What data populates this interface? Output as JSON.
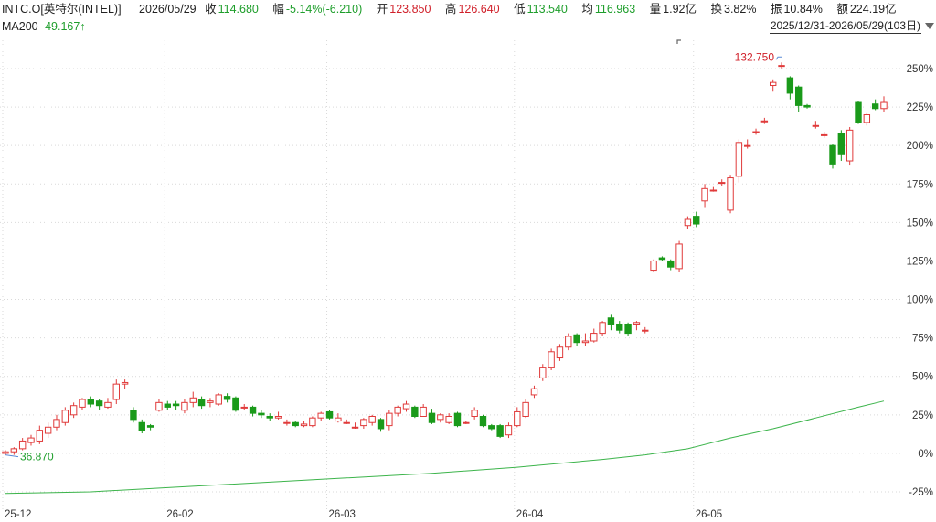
{
  "header": {
    "ticker": "INTC.O[英特尔(INTEL)]",
    "date": "2026/05/29",
    "close_label": "收",
    "close_value": "114.680",
    "change_label": "幅",
    "change_value": "-5.14%(-6.210)",
    "open_label": "开",
    "open_value": "123.850",
    "high_label": "高",
    "high_value": "126.640",
    "low_label": "低",
    "low_value": "113.540",
    "avg_label": "均",
    "avg_value": "116.963",
    "volume_label": "量",
    "volume_value": "1.92亿",
    "turnover_label": "换",
    "turnover_value": "3.82%",
    "amplitude_label": "振",
    "amplitude_value": "10.84%",
    "amount_label": "额",
    "amount_value": "224.19亿",
    "ma_label": "MA200",
    "ma_value": "49.167↑",
    "range_text": "2025/12/31-2026/05/29(103日)"
  },
  "colors": {
    "up": "#e03a3a",
    "down": "#1a9a1a",
    "ma": "#3cb44b",
    "grid": "#d9d9d9"
  },
  "chart_data": {
    "type": "candlestick",
    "y_unit": "percent change from base",
    "ylim": [
      -25,
      255
    ],
    "y_ticks": [
      -25,
      0,
      25,
      50,
      75,
      100,
      125,
      150,
      175,
      200,
      225,
      250
    ],
    "y_tick_labels": [
      "-25%",
      "0%",
      "25%",
      "50%",
      "75%",
      "100%",
      "125%",
      "150%",
      "175%",
      "200%",
      "225%",
      "250%"
    ],
    "x_ticks": [
      {
        "index": 0,
        "label": "25-12"
      },
      {
        "index": 19,
        "label": "26-02"
      },
      {
        "index": 38,
        "label": "26-03"
      },
      {
        "index": 60,
        "label": "26-04"
      },
      {
        "index": 81,
        "label": "26-05"
      }
    ],
    "candles": [
      [
        0,
        1,
        2,
        -1
      ],
      [
        1,
        3,
        4,
        -1
      ],
      [
        3,
        8,
        10,
        2
      ],
      [
        7,
        10,
        12,
        5
      ],
      [
        8,
        15,
        18,
        6
      ],
      [
        13,
        17,
        20,
        10
      ],
      [
        17,
        22,
        25,
        15
      ],
      [
        20,
        28,
        30,
        18
      ],
      [
        25,
        31,
        33,
        23
      ],
      [
        30,
        35,
        36,
        28
      ],
      [
        35,
        32,
        37,
        30
      ],
      [
        34,
        31,
        35,
        28
      ],
      [
        30,
        33,
        36,
        29
      ],
      [
        35,
        45,
        48,
        32
      ],
      [
        45,
        46,
        48,
        42
      ],
      [
        28,
        22,
        30,
        20
      ],
      [
        20,
        15,
        22,
        13
      ],
      [
        18,
        17,
        19,
        15
      ],
      [
        28,
        33,
        35,
        27
      ],
      [
        32,
        30,
        34,
        28
      ],
      [
        32,
        31,
        34,
        28
      ],
      [
        28,
        33,
        35,
        26
      ],
      [
        33,
        36,
        40,
        30
      ],
      [
        35,
        31,
        37,
        29
      ],
      [
        33,
        34,
        36,
        30
      ],
      [
        32,
        38,
        39,
        31
      ],
      [
        37,
        35,
        39,
        33
      ],
      [
        36,
        28,
        37,
        27
      ],
      [
        30,
        30,
        32,
        28
      ],
      [
        30,
        26,
        31,
        24
      ],
      [
        26,
        25,
        28,
        23
      ],
      [
        24,
        23,
        26,
        21
      ],
      [
        23,
        24,
        27,
        22
      ],
      [
        20,
        20,
        22,
        18
      ],
      [
        20,
        18,
        21,
        17
      ],
      [
        18,
        19,
        21,
        17
      ],
      [
        18,
        23,
        24,
        17
      ],
      [
        23,
        26,
        27,
        21
      ],
      [
        27,
        23,
        28,
        22
      ],
      [
        21,
        23,
        26,
        20
      ],
      [
        20,
        20,
        22,
        19
      ],
      [
        17,
        17,
        20,
        16
      ],
      [
        18,
        22,
        23,
        16
      ],
      [
        20,
        24,
        25,
        18
      ],
      [
        22,
        16,
        23,
        14
      ],
      [
        18,
        26,
        28,
        15
      ],
      [
        26,
        30,
        31,
        24
      ],
      [
        29,
        32,
        34,
        27
      ],
      [
        30,
        24,
        31,
        23
      ],
      [
        24,
        30,
        32,
        24
      ],
      [
        26,
        20,
        29,
        19
      ],
      [
        22,
        25,
        26,
        20
      ],
      [
        20,
        24,
        26,
        19
      ],
      [
        26,
        18,
        27,
        17
      ],
      [
        20,
        20,
        21,
        19
      ],
      [
        24,
        28,
        30,
        22
      ],
      [
        24,
        18,
        25,
        17
      ],
      [
        18,
        16,
        19,
        15
      ],
      [
        18,
        11,
        19,
        10
      ],
      [
        12,
        18,
        20,
        10
      ],
      [
        18,
        27,
        30,
        17
      ],
      [
        24,
        33,
        35,
        23
      ],
      [
        38,
        42,
        44,
        36
      ],
      [
        49,
        56,
        58,
        47
      ],
      [
        56,
        66,
        68,
        54
      ],
      [
        62,
        69,
        71,
        60
      ],
      [
        69,
        76,
        78,
        67
      ],
      [
        77,
        72,
        78,
        70
      ],
      [
        72,
        73,
        78,
        70
      ],
      [
        73,
        78,
        81,
        72
      ],
      [
        78,
        85,
        86,
        76
      ],
      [
        88,
        84,
        90,
        80
      ],
      [
        84,
        80,
        86,
        78
      ],
      [
        84,
        78,
        85,
        76
      ],
      [
        84,
        85,
        86,
        80
      ],
      [
        80,
        80,
        82,
        78
      ],
      [
        119,
        125,
        126,
        118
      ],
      [
        127,
        126,
        128,
        125
      ],
      [
        125,
        121,
        126,
        119
      ],
      [
        120,
        136,
        138,
        118
      ],
      [
        148,
        152,
        154,
        146
      ],
      [
        154,
        149,
        157,
        147
      ],
      [
        164,
        172,
        175,
        160
      ],
      [
        171,
        171,
        173,
        170
      ],
      [
        176,
        176,
        178,
        174
      ],
      [
        158,
        179,
        181,
        156
      ],
      [
        180,
        202,
        204,
        176
      ],
      [
        200,
        200,
        204,
        198
      ],
      [
        209,
        209,
        211,
        207
      ],
      [
        216,
        216,
        218,
        214
      ],
      [
        239,
        241,
        243,
        235
      ],
      [
        252,
        252,
        254,
        250
      ],
      [
        244,
        234,
        245,
        230
      ],
      [
        238,
        226,
        239,
        222
      ],
      [
        226,
        225,
        227,
        224
      ],
      [
        213,
        213,
        216,
        211
      ],
      [
        207,
        207,
        209,
        205
      ],
      [
        200,
        188,
        201,
        185
      ],
      [
        208,
        194,
        210,
        190
      ],
      [
        190,
        210,
        212,
        187
      ],
      [
        228,
        215,
        229,
        214
      ],
      [
        215,
        220,
        221,
        213
      ],
      [
        227,
        224,
        230,
        223
      ],
      [
        224,
        228,
        232,
        222
      ]
    ],
    "ma_line": [
      [
        0,
        -26
      ],
      [
        10,
        -25
      ],
      [
        20,
        -22
      ],
      [
        30,
        -19
      ],
      [
        40,
        -16
      ],
      [
        50,
        -13
      ],
      [
        60,
        -9
      ],
      [
        70,
        -4
      ],
      [
        75,
        -1
      ],
      [
        80,
        3
      ],
      [
        85,
        10
      ],
      [
        90,
        16
      ],
      [
        95,
        23
      ],
      [
        100,
        30
      ],
      [
        103,
        34
      ]
    ],
    "annotations": {
      "high_label": "132.750",
      "low_label": "36.870"
    }
  }
}
